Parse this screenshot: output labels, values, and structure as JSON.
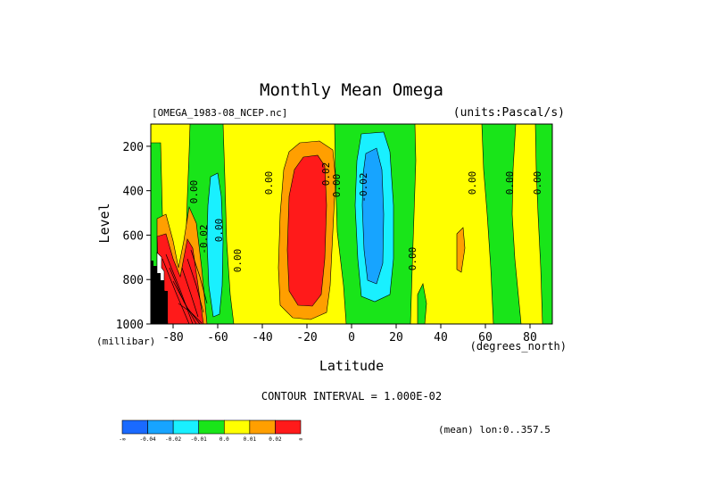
{
  "chart_data": {
    "type": "filled-contour",
    "title": "Monthly Mean Omega",
    "dataset_label": "[OMEGA_1983-08_NCEP.nc]",
    "units_label": "(units:Pascal/s)",
    "xlabel": "Latitude",
    "xunit_label": "(degrees_north)",
    "ylabel": "Level",
    "yunit_label": "(millibar)",
    "xlim": [
      -90,
      90
    ],
    "ylim": [
      1000,
      100
    ],
    "y_inverted": true,
    "xticks": [
      -80,
      -60,
      -40,
      -20,
      0,
      20,
      40,
      60,
      80
    ],
    "xtick_labels": [
      "-80",
      "-60",
      "-40",
      "-20",
      "0",
      "20",
      "40",
      "60",
      "80"
    ],
    "yticks": [
      200,
      400,
      600,
      800,
      1000
    ],
    "ytick_labels": [
      "200",
      "400",
      "600",
      "800",
      "1000"
    ],
    "contour_interval_text": "CONTOUR INTERVAL = 1.000E-02",
    "mean_text": "(mean) lon:0..357.5",
    "contour_labels": [
      "0.00",
      "0.00",
      "0.00",
      "-0.02",
      "0.00",
      "0.02",
      "0.00",
      "-0.02",
      "0.00",
      "0.00",
      "0.00",
      "0.00"
    ],
    "colorbar": {
      "colors": [
        "#1a6aff",
        "#17a4ff",
        "#19f0ff",
        "#19e519",
        "#ffff00",
        "#ff9f00",
        "#ff1a1a"
      ],
      "tick_labels": [
        "-∞",
        "-0.04",
        "-0.02",
        "-0.01",
        "0.0",
        "0.01",
        "0.02",
        "∞"
      ]
    },
    "series": [
      {
        "level": "+0.02",
        "regions": [
          "lat -30..-17, 220..850 mb",
          "lat -80..-68, 600..1000 mb"
        ]
      },
      {
        "level": "+0.01",
        "regions": [
          "lat -35..-12, 160..980 mb",
          "lat -84..-63, 520..1000 mb"
        ]
      },
      {
        "level": "0.00 (positive)",
        "regions": [
          "lat -58..-10",
          "lat 23..46",
          "lat 50..62",
          "lat 73..84"
        ]
      },
      {
        "level": "-0.01",
        "regions": [
          "lat -92..-88",
          "lat -73..-58",
          "lat -6..23",
          "lat 46..50",
          "lat 62..73",
          "lat 84..90"
        ]
      },
      {
        "level": "-0.02",
        "regions": [
          "lat -68..-60, 350..760 mb",
          "lat 0..22, 220..880 mb"
        ]
      },
      {
        "level": "-0.04",
        "regions": [
          "lat 4..16, 250..800 mb"
        ]
      },
      {
        "level": "topography mask",
        "regions": [
          "lat -90..-82, 620..1000 mb"
        ]
      }
    ]
  }
}
